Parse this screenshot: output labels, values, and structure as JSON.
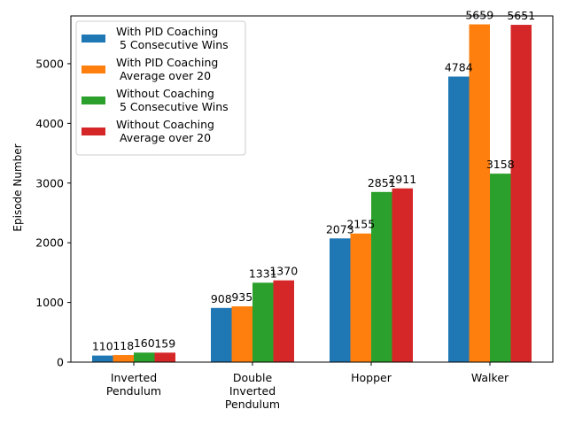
{
  "chart_data": {
    "type": "bar",
    "title": "",
    "xlabel": "",
    "ylabel": "Episode Number",
    "ylim": [
      0,
      5800
    ],
    "yticks": [
      0,
      1000,
      2000,
      3000,
      4000,
      5000
    ],
    "categories": [
      [
        "Inverted",
        "Pendulum"
      ],
      [
        "Double",
        "Inverted",
        "Pendulum"
      ],
      [
        "Hopper"
      ],
      [
        "Walker"
      ]
    ],
    "series": [
      {
        "name": [
          "With PID Coaching",
          " 5 Consecutive Wins"
        ],
        "color": "#1f77b4",
        "values": [
          110,
          908,
          2073,
          4784
        ]
      },
      {
        "name": [
          "With PID Coaching",
          " Average over 20"
        ],
        "color": "#ff7f0e",
        "values": [
          118,
          935,
          2155,
          5659
        ]
      },
      {
        "name": [
          "Without Coaching",
          " 5 Consecutive Wins"
        ],
        "color": "#2ca02c",
        "values": [
          160,
          1331,
          2851,
          3158
        ]
      },
      {
        "name": [
          "Without Coaching",
          " Average over 20"
        ],
        "color": "#d62728",
        "values": [
          159,
          1370,
          2911,
          5651
        ]
      }
    ],
    "legend_position": "top-left",
    "grid": false
  }
}
